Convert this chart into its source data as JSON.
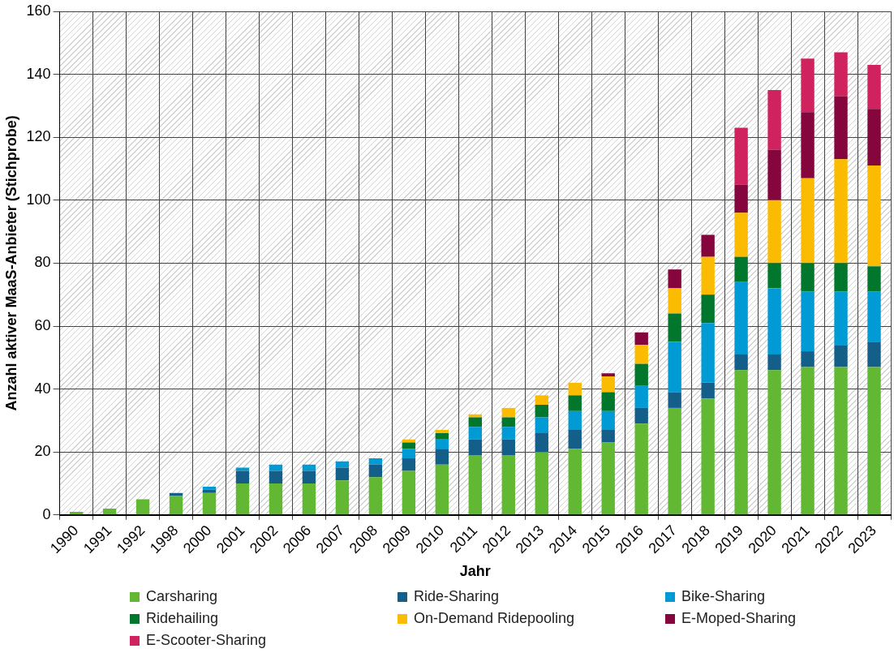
{
  "chart_data": {
    "type": "bar",
    "stacked": true,
    "xlabel": "Jahr",
    "ylabel": "Anzahl aktiver MaaS-Anbieter (Stichprobe)",
    "categories": [
      "1990",
      "1991",
      "1992",
      "1998",
      "2000",
      "2001",
      "2002",
      "2006",
      "2007",
      "2008",
      "2009",
      "2010",
      "2011",
      "2012",
      "2013",
      "2014",
      "2015",
      "2016",
      "2017",
      "2018",
      "2019",
      "2020",
      "2021",
      "2022",
      "2023"
    ],
    "ylim": [
      0,
      160
    ],
    "yticks": [
      0,
      20,
      40,
      60,
      80,
      100,
      120,
      140,
      160
    ],
    "grid": true,
    "legend": "bottom",
    "series": [
      {
        "name": "Carsharing",
        "color": "#62b832",
        "values": [
          1,
          2,
          5,
          6,
          7,
          10,
          10,
          10,
          11,
          12,
          14,
          16,
          19,
          19,
          20,
          21,
          23,
          29,
          34,
          37,
          46,
          46,
          47,
          47,
          47
        ]
      },
      {
        "name": "Ride-Sharing",
        "color": "#145f8a",
        "values": [
          0,
          0,
          0,
          1,
          1,
          4,
          4,
          4,
          4,
          4,
          4,
          5,
          5,
          5,
          6,
          6,
          4,
          5,
          5,
          5,
          5,
          5,
          5,
          7,
          8
        ]
      },
      {
        "name": "Bike-Sharing",
        "color": "#009ad4",
        "values": [
          0,
          0,
          0,
          0,
          1,
          1,
          2,
          2,
          2,
          2,
          3,
          3,
          4,
          4,
          5,
          6,
          6,
          7,
          16,
          19,
          23,
          21,
          19,
          17,
          16
        ]
      },
      {
        "name": "Ridehailing",
        "color": "#00772d",
        "values": [
          0,
          0,
          0,
          0,
          0,
          0,
          0,
          0,
          0,
          0,
          2,
          2,
          3,
          3,
          4,
          5,
          6,
          7,
          9,
          9,
          8,
          8,
          9,
          9,
          8
        ]
      },
      {
        "name": "On-Demand Ridepooling",
        "color": "#fbbb00",
        "values": [
          0,
          0,
          0,
          0,
          0,
          0,
          0,
          0,
          0,
          0,
          1,
          1,
          1,
          3,
          3,
          4,
          5,
          6,
          8,
          12,
          14,
          20,
          27,
          33,
          32
        ]
      },
      {
        "name": "E-Moped-Sharing",
        "color": "#85053d",
        "values": [
          0,
          0,
          0,
          0,
          0,
          0,
          0,
          0,
          0,
          0,
          0,
          0,
          0,
          0,
          0,
          0,
          1,
          4,
          6,
          7,
          9,
          16,
          21,
          20,
          18
        ]
      },
      {
        "name": "E-Scooter-Sharing",
        "color": "#d0225e",
        "values": [
          0,
          0,
          0,
          0,
          0,
          0,
          0,
          0,
          0,
          0,
          0,
          0,
          0,
          0,
          0,
          0,
          0,
          0,
          0,
          0,
          18,
          19,
          17,
          14,
          14
        ]
      }
    ]
  }
}
